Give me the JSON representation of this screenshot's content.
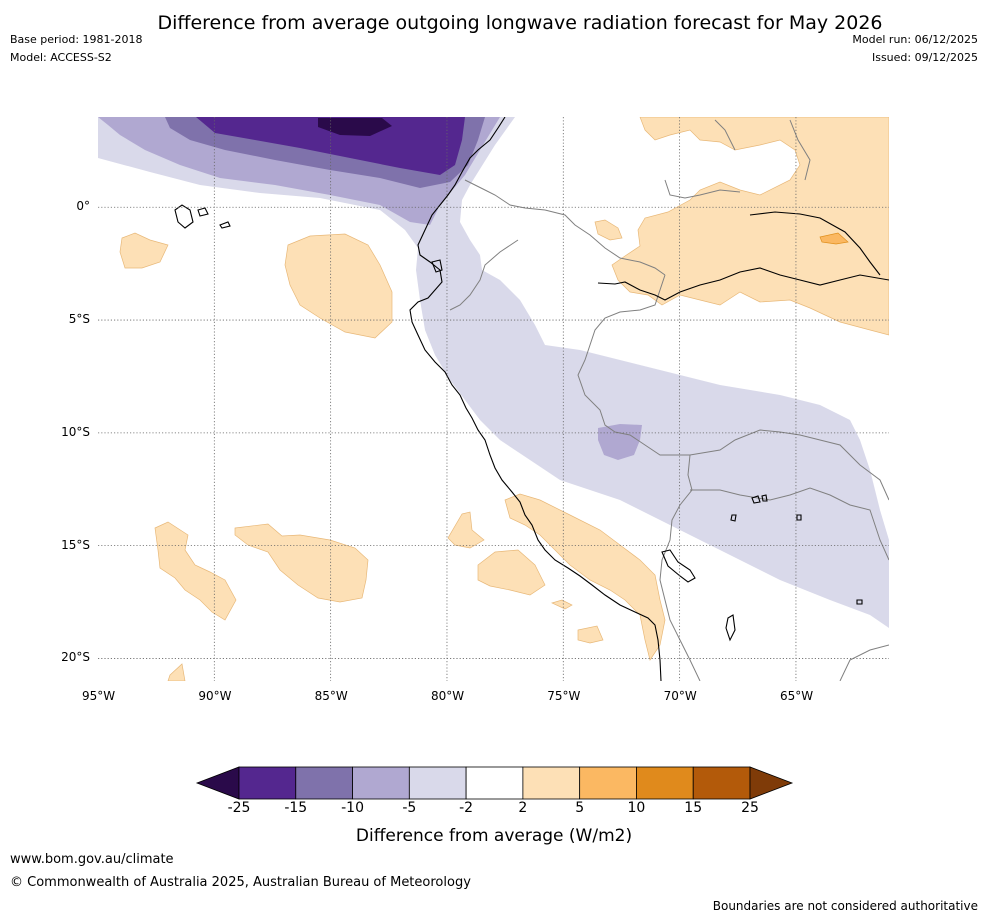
{
  "header": {
    "title": "Difference from average outgoing longwave radiation forecast for May 2026",
    "base_period": "Base period: 1981-2018",
    "model": "Model: ACCESS-S2",
    "model_run": "Model run: 06/12/2025",
    "issued": "Issued: 09/12/2025"
  },
  "map": {
    "region": "Western South America and eastern Pacific",
    "lon_range": [
      -95,
      -61
    ],
    "lat_range": [
      -21,
      4
    ],
    "lon_ticks": [
      "95°W",
      "90°W",
      "85°W",
      "80°W",
      "75°W",
      "70°W",
      "65°W"
    ],
    "lat_ticks": [
      "0°",
      "5°S",
      "10°S",
      "15°S",
      "20°S"
    ],
    "gridlines": true
  },
  "colorbar": {
    "title": "Difference from average (W/m2)",
    "labels": [
      "-25",
      "-15",
      "-10",
      "-5",
      "-2",
      "2",
      "5",
      "10",
      "15",
      "25"
    ],
    "colors": [
      "#2a0a4a",
      "#54278f",
      "#7f72ab",
      "#b0a8d1",
      "#d9d9ea",
      "#ffffff",
      "#fde0b6",
      "#fbb862",
      "#e08a1c",
      "#b35a0a",
      "#7f3b08"
    ],
    "extend": "both"
  },
  "footer": {
    "url": "www.bom.gov.au/climate",
    "copyright": "© Commonwealth of Australia 2025, Australian Bureau of Meteorology",
    "disclaimer": "Boundaries are not considered authoritative"
  }
}
